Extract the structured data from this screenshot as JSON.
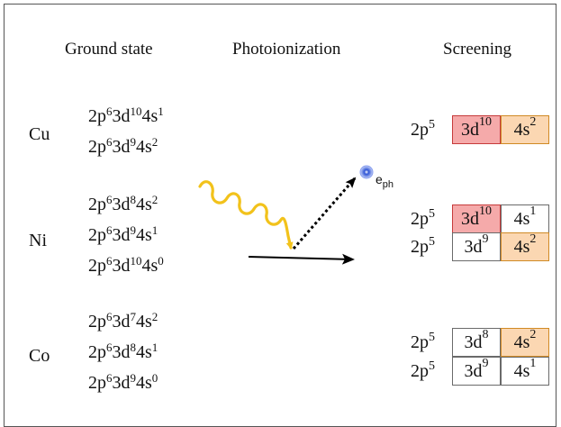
{
  "headers": {
    "ground": "Ground state",
    "photo": "Photoionization",
    "screen": "Screening"
  },
  "elements": {
    "cu": "Cu",
    "ni": "Ni",
    "co": "Co"
  },
  "ground": {
    "cu": [
      {
        "a": "2p",
        "ae": "6",
        "b": "3d",
        "be": "10",
        "c": "4s",
        "ce": "1"
      },
      {
        "a": "2p",
        "ae": "6",
        "b": "3d",
        "be": "9",
        "c": "4s",
        "ce": "2"
      }
    ],
    "ni": [
      {
        "a": "2p",
        "ae": "6",
        "b": "3d",
        "be": "8",
        "c": "4s",
        "ce": "2"
      },
      {
        "a": "2p",
        "ae": "6",
        "b": "3d",
        "be": "9",
        "c": "4s",
        "ce": "1"
      },
      {
        "a": "2p",
        "ae": "6",
        "b": "3d",
        "be": "10",
        "c": "4s",
        "ce": "0"
      }
    ],
    "co": [
      {
        "a": "2p",
        "ae": "6",
        "b": "3d",
        "be": "7",
        "c": "4s",
        "ce": "2"
      },
      {
        "a": "2p",
        "ae": "6",
        "b": "3d",
        "be": "8",
        "c": "4s",
        "ce": "1"
      },
      {
        "a": "2p",
        "ae": "6",
        "b": "3d",
        "be": "9",
        "c": "4s",
        "ce": "0"
      }
    ]
  },
  "screening": {
    "cu": [
      {
        "p": "2p",
        "pe": "5",
        "d": "3d",
        "de": "10",
        "dcolor": "red",
        "s": "4s",
        "se": "2",
        "scolor": "orange"
      }
    ],
    "ni": [
      {
        "p": "2p",
        "pe": "5",
        "d": "3d",
        "de": "10",
        "dcolor": "red",
        "s": "4s",
        "se": "1",
        "scolor": "plain"
      },
      {
        "p": "2p",
        "pe": "5",
        "d": "3d",
        "de": "9",
        "dcolor": "plain",
        "s": "4s",
        "se": "2",
        "scolor": "orange"
      }
    ],
    "co": [
      {
        "p": "2p",
        "pe": "5",
        "d": "3d",
        "de": "8",
        "dcolor": "plain",
        "s": "4s",
        "se": "2",
        "scolor": "orange"
      },
      {
        "p": "2p",
        "pe": "5",
        "d": "3d",
        "de": "9",
        "dcolor": "plain",
        "s": "4s",
        "se": "1",
        "scolor": "plain"
      }
    ]
  },
  "electron": {
    "symbol": "e",
    "subscript": "ph"
  },
  "colors": {
    "red_fill": "#f5aaaa",
    "red_border": "#c63b3b",
    "orange_fill": "#fbd7b2",
    "orange_border": "#d08a25",
    "photon": "#f2c21b",
    "electron": "#2f55d6"
  },
  "icons": {
    "photon": "wavy-photon-arrow-icon",
    "electron": "electron-dot-icon"
  }
}
